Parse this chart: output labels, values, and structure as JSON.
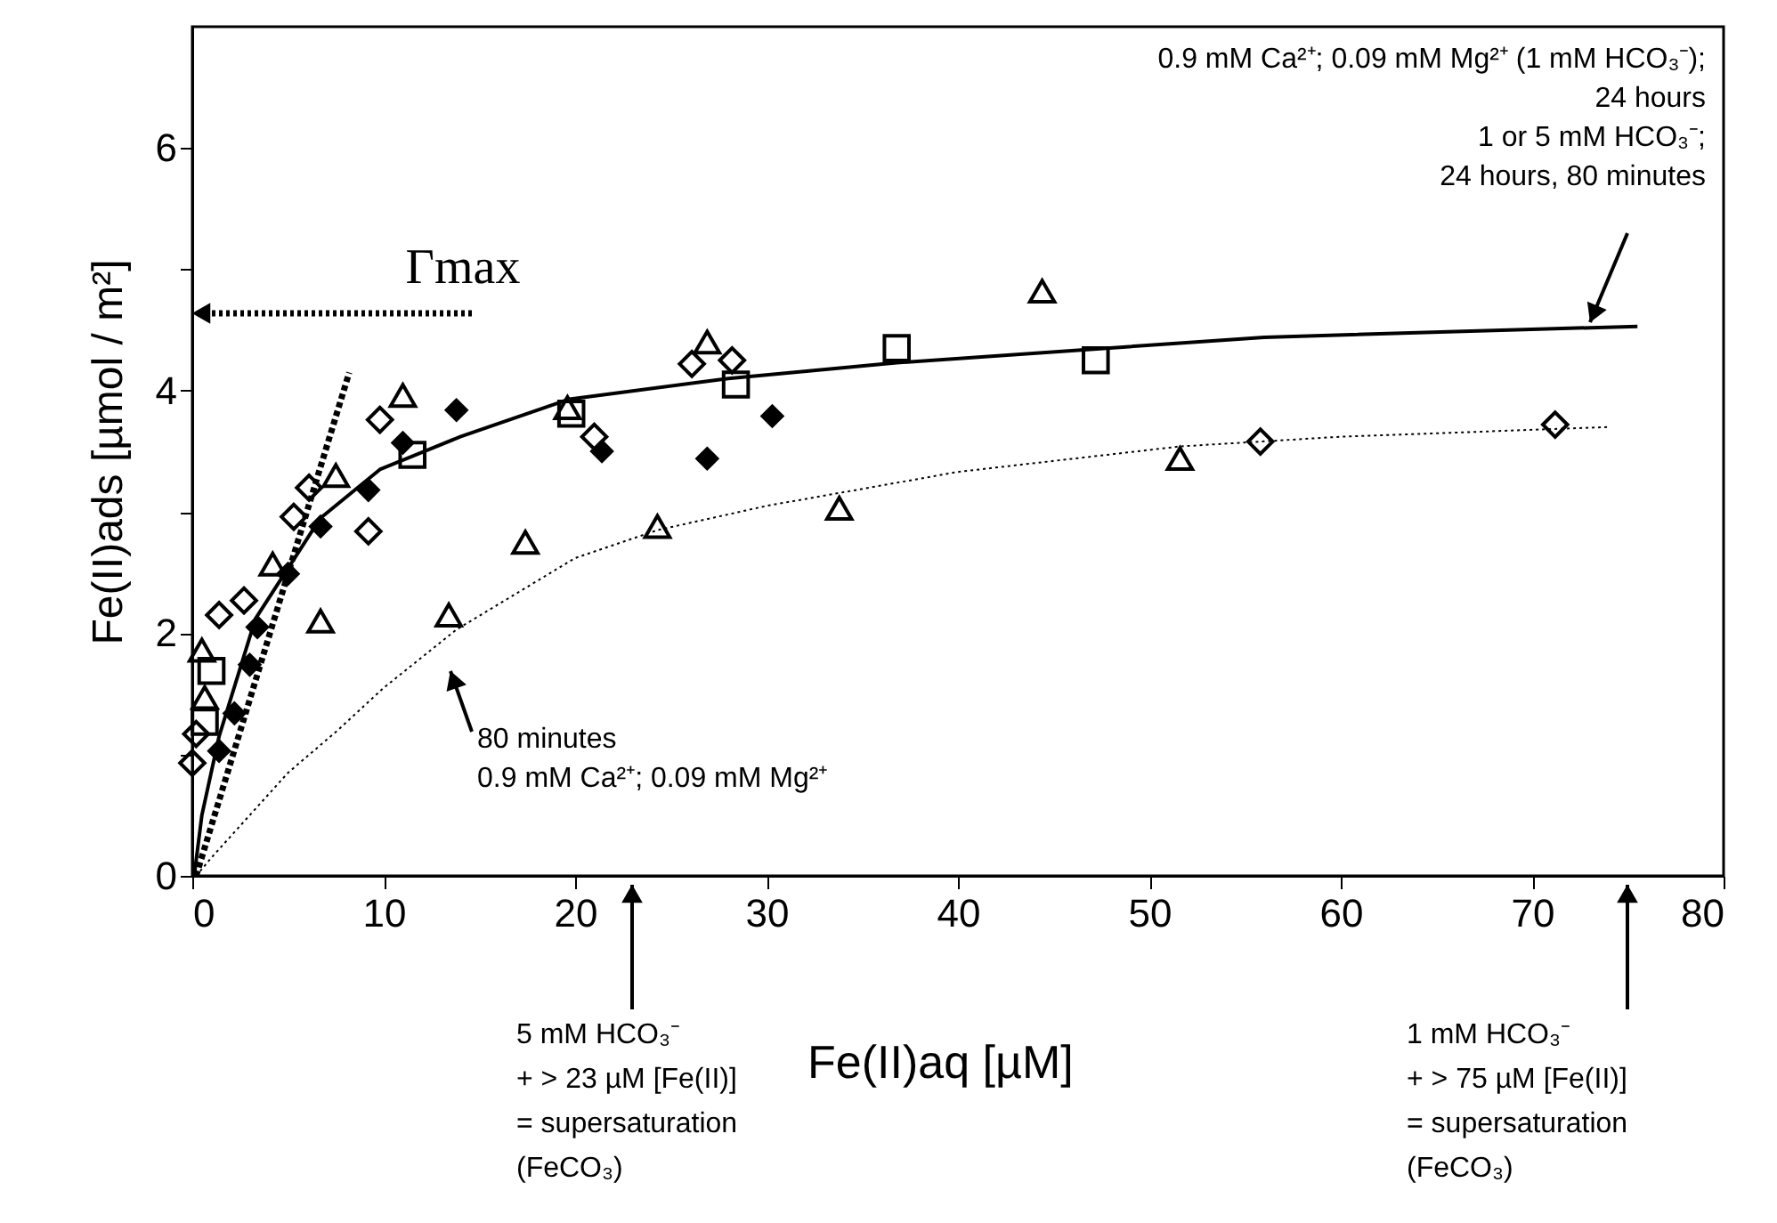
{
  "chart_data": {
    "type": "scatter",
    "xlabel": "Fe(II)aq [µM]",
    "ylabel": "Fe(II)ads [µmol / m²]",
    "xlim": [
      0,
      80
    ],
    "xticks": [
      0,
      10,
      20,
      30,
      40,
      50,
      60,
      70,
      80
    ],
    "ylim": [
      0,
      7
    ],
    "yticks": [
      0,
      {
        "value": 1,
        "label": null
      },
      2,
      {
        "value": 3,
        "label": null
      },
      4,
      {
        "value": 5,
        "label": null
      },
      6
    ],
    "grid": false,
    "series": [
      {
        "type": "line",
        "color": "#000000",
        "line_style": "solid",
        "marker": "none",
        "x": [
          0.1,
          0.5,
          1.4,
          3.3,
          6.7,
          9.8,
          14,
          19.7,
          28,
          36.8,
          56,
          75.5
        ],
        "values": [
          0,
          0.5,
          1.15,
          2.12,
          2.95,
          3.35,
          3.62,
          3.93,
          4.1,
          4.23,
          4.44,
          4.53
        ]
      },
      {
        "type": "line",
        "color": "#000000",
        "line_style": "dotted",
        "marker": "none",
        "x": [
          0.2,
          1,
          3,
          5,
          7.6,
          10,
          13.8,
          20,
          24.3,
          30,
          40,
          51.6,
          60,
          74
        ],
        "values": [
          0,
          0.15,
          0.5,
          0.85,
          1.2,
          1.55,
          2.03,
          2.62,
          2.85,
          3.05,
          3.33,
          3.54,
          3.62,
          3.7
        ]
      },
      {
        "type": "line",
        "color": "#000000",
        "line_style": "dashed",
        "marker": "none",
        "x": [
          0.2,
          8.2
        ],
        "values": [
          0,
          4.15
        ]
      },
      {
        "color": "#000000",
        "marker": "diamond",
        "x": [
          0,
          0.2,
          1.4,
          2.7,
          5.3,
          6.1,
          9.2,
          9.8,
          21,
          26.1,
          28.2,
          55.8,
          71.2
        ],
        "values": [
          0.93,
          1.17,
          2.15,
          2.27,
          2.96,
          3.2,
          2.84,
          3.76,
          3.62,
          4.22,
          4.25,
          3.58,
          3.72
        ]
      },
      {
        "color": "#000000",
        "marker": "diamond",
        "x": [
          1.4,
          2.2,
          3,
          3.4,
          5,
          6.7,
          9.2,
          11,
          13.8,
          21.4,
          26.9,
          30.3
        ],
        "values": [
          1.03,
          1.34,
          1.74,
          2.05,
          2.49,
          2.88,
          3.18,
          3.57,
          3.84,
          3.5,
          3.44,
          3.79
        ]
      },
      {
        "color": "#000000",
        "marker": "triangle",
        "x": [
          0.5,
          0.65,
          4.2,
          6.7,
          7.5,
          11,
          13.4,
          17.4,
          19.6,
          24.3,
          26.9,
          33.8,
          44.4,
          51.6
        ],
        "values": [
          1.86,
          1.47,
          2.57,
          2.1,
          3.3,
          3.96,
          2.15,
          2.75,
          3.86,
          2.88,
          4.4,
          3.03,
          4.82,
          3.44
        ]
      },
      {
        "color": "#000000",
        "marker": "square",
        "x": [
          0.65,
          1,
          11.5,
          19.8,
          28.4,
          36.8,
          47.2
        ],
        "values": [
          1.27,
          1.69,
          3.47,
          3.81,
          4.05,
          4.35,
          4.25
        ]
      }
    ],
    "annotations": [
      "Γmax",
      "80 minutes\n0.9 mM Ca²⁺; 0.09 mM Mg²⁺",
      "0.9 mM Ca²⁺; 0.09 mM Mg²⁺ (1 mM HCO₃⁻);\n24 hours\n1 or 5 mM HCO₃⁻;\n24 hours, 80 minutes",
      "5 mM HCO₃⁻\n+ > 23 µM [Fe(II)]\n= supersaturation\n(FeCO₃)",
      "1 mM HCO₃⁻\n+ > 75 µM [Fe(II)]\n= supersaturation\n(FeCO₃)"
    ]
  }
}
